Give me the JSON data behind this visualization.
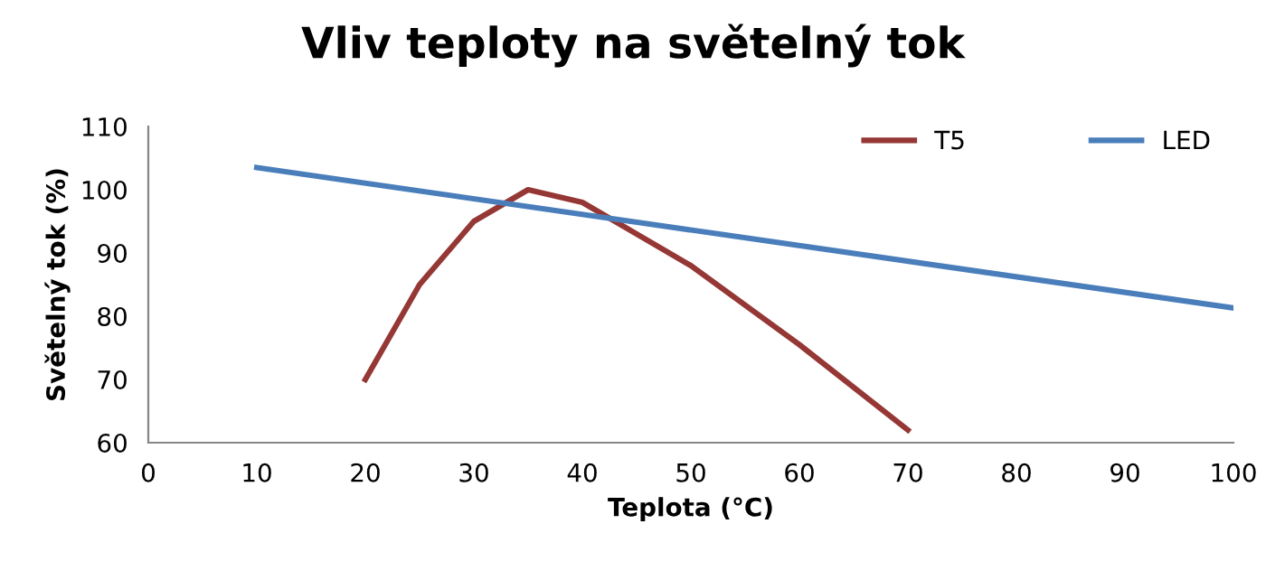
{
  "chart_data": {
    "type": "line",
    "title": "Vliv teploty na světelný tok",
    "xlabel": "Teplota (°C)",
    "ylabel": "Světelný tok (%)",
    "series": [
      {
        "name": "T5",
        "color": "#953735",
        "x": [
          20,
          25,
          30,
          35,
          40,
          50,
          60,
          70
        ],
        "values": [
          70,
          85,
          95,
          100,
          98,
          88,
          75.5,
          62
        ]
      },
      {
        "name": "LED",
        "color": "#4a7ebb",
        "x": [
          10,
          100
        ],
        "values": [
          103.5,
          81.3
        ]
      }
    ],
    "xlim": [
      0,
      100
    ],
    "xticks": [
      0,
      10,
      20,
      30,
      40,
      50,
      60,
      70,
      80,
      90,
      100
    ],
    "ylim": [
      60,
      110
    ],
    "yticks": [
      60,
      70,
      80,
      90,
      100,
      110
    ],
    "grid": false,
    "legend": "top right",
    "marker": "none",
    "line_style": "solid"
  }
}
